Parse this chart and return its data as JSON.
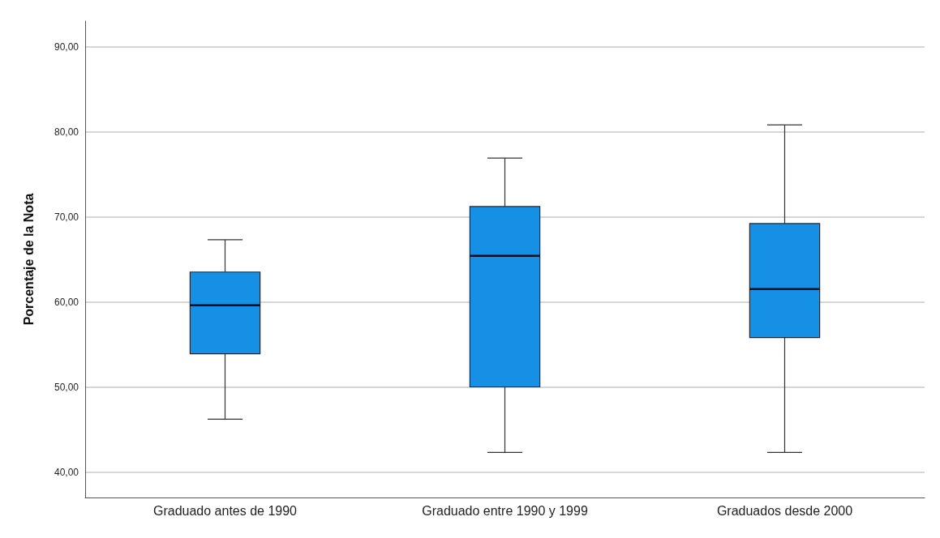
{
  "chart_data": {
    "type": "box",
    "ylabel": "Porcentaje de la Nota",
    "categories": [
      "Graduado antes de 1990",
      "Graduado entre 1990 y 1999",
      "Graduados desde 2000"
    ],
    "boxes": [
      {
        "low": 46.2,
        "q1": 53.9,
        "median": 59.6,
        "q3": 63.5,
        "high": 67.3
      },
      {
        "low": 42.3,
        "q1": 50.0,
        "median": 65.4,
        "q3": 71.2,
        "high": 76.9
      },
      {
        "low": 42.3,
        "q1": 55.8,
        "median": 61.5,
        "q3": 69.2,
        "high": 80.8
      }
    ],
    "color": "#1590e4",
    "ylim": [
      37,
      93
    ],
    "yticks": [
      {
        "value": 40,
        "label": "40,00"
      },
      {
        "value": 50,
        "label": "50,00"
      },
      {
        "value": 60,
        "label": "60,00"
      },
      {
        "value": 70,
        "label": "70,00"
      },
      {
        "value": 80,
        "label": "80,00"
      },
      {
        "value": 90,
        "label": "90,00"
      }
    ],
    "grid": "y"
  }
}
